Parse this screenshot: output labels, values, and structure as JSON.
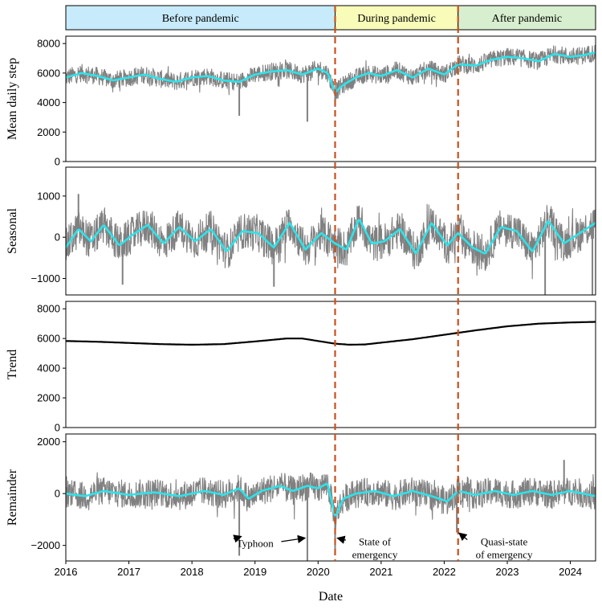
{
  "chart_data": {
    "type": "line",
    "xlabel": "Date",
    "xlim": [
      2016.0,
      2024.4
    ],
    "x_ticks": [
      2016,
      2017,
      2018,
      2019,
      2020,
      2021,
      2022,
      2023,
      2024
    ],
    "x_tick_labels": [
      "2016",
      "2017",
      "2018",
      "2019",
      "2020",
      "2021",
      "2022",
      "2023",
      "2024"
    ],
    "phases": [
      {
        "label": "Before pandemic",
        "start": 2016.0,
        "end": 2020.27,
        "color": "#c7ebfb"
      },
      {
        "label": "During pandemic",
        "start": 2020.27,
        "end": 2022.22,
        "color": "#f9fcb9"
      },
      {
        "label": "After pandemic",
        "start": 2022.22,
        "end": 2024.4,
        "color": "#d8efcf"
      }
    ],
    "event_lines": [
      2020.27,
      2022.22
    ],
    "colors": {
      "raw": "#808080",
      "smooth": "#2de3ea",
      "trend": "#000000",
      "event_line": "#c8501e",
      "phase_border": "#000000"
    },
    "panels": [
      {
        "ylabel": "Mean daily step",
        "ylim": [
          0,
          8500
        ],
        "y_ticks": [
          0,
          2000,
          4000,
          6000,
          8000
        ],
        "y_tick_labels": [
          "0",
          "2000",
          "4000",
          "6000",
          "8000"
        ],
        "smooth": {
          "x": [
            2016.0,
            2016.25,
            2016.5,
            2016.75,
            2017.0,
            2017.25,
            2017.5,
            2017.75,
            2018.0,
            2018.25,
            2018.5,
            2018.75,
            2019.0,
            2019.25,
            2019.5,
            2019.75,
            2020.0,
            2020.15,
            2020.27,
            2020.4,
            2020.6,
            2020.8,
            2021.0,
            2021.25,
            2021.5,
            2021.75,
            2022.0,
            2022.22,
            2022.5,
            2022.75,
            2023.0,
            2023.25,
            2023.5,
            2023.75,
            2024.0,
            2024.2,
            2024.4
          ],
          "y": [
            5700,
            6000,
            5800,
            5500,
            5700,
            5900,
            5600,
            5400,
            5700,
            5800,
            5500,
            5400,
            5900,
            6100,
            6200,
            5900,
            6300,
            6000,
            4700,
            5200,
            5700,
            6000,
            5800,
            6200,
            5700,
            6300,
            5900,
            6600,
            6500,
            6900,
            7100,
            7000,
            6800,
            7300,
            7100,
            7200,
            7400
          ]
        },
        "raw": {
          "amplitude": 600,
          "spikes": [
            [
              2018.75,
              3100
            ],
            [
              2019.83,
              2700
            ],
            [
              2020.27,
              3700
            ]
          ]
        }
      },
      {
        "ylabel": "Seasonal",
        "ylim": [
          -1400,
          1700
        ],
        "y_ticks": [
          -1000,
          0,
          1000
        ],
        "y_tick_labels": [
          "−1000",
          "0",
          "1000"
        ],
        "smooth": {
          "x": [
            2016.0,
            2016.2,
            2016.4,
            2016.6,
            2016.85,
            2017.05,
            2017.3,
            2017.55,
            2017.8,
            2018.05,
            2018.3,
            2018.55,
            2018.8,
            2019.05,
            2019.3,
            2019.55,
            2019.8,
            2020.05,
            2020.27,
            2020.45,
            2020.65,
            2020.85,
            2021.05,
            2021.3,
            2021.55,
            2021.8,
            2022.05,
            2022.22,
            2022.45,
            2022.65,
            2022.9,
            2023.15,
            2023.4,
            2023.65,
            2023.9,
            2024.15,
            2024.4
          ],
          "y": [
            -250,
            200,
            -100,
            300,
            -200,
            50,
            300,
            -150,
            250,
            -100,
            200,
            -350,
            150,
            100,
            -250,
            350,
            -300,
            100,
            -150,
            -300,
            450,
            -150,
            -100,
            200,
            -400,
            350,
            -200,
            100,
            -250,
            -400,
            250,
            150,
            -350,
            400,
            -150,
            100,
            350
          ]
        },
        "raw": {
          "amplitude": 450,
          "spikes": [
            [
              2016.2,
              1050
            ],
            [
              2016.9,
              -1150
            ],
            [
              2019.3,
              -1200
            ],
            [
              2023.6,
              -1400
            ],
            [
              2024.35,
              -1400
            ]
          ]
        }
      },
      {
        "ylabel": "Trend",
        "ylim": [
          0,
          8500
        ],
        "y_ticks": [
          0,
          2000,
          4000,
          6000,
          8000
        ],
        "y_tick_labels": [
          "0",
          "2000",
          "4000",
          "6000",
          "8000"
        ],
        "smooth": {
          "x": [
            2016.0,
            2016.5,
            2017.0,
            2017.5,
            2018.0,
            2018.5,
            2019.0,
            2019.5,
            2019.75,
            2020.0,
            2020.27,
            2020.5,
            2020.75,
            2021.0,
            2021.5,
            2022.0,
            2022.5,
            2023.0,
            2023.5,
            2024.0,
            2024.4
          ],
          "y": [
            5830,
            5780,
            5700,
            5620,
            5580,
            5620,
            5800,
            6000,
            6000,
            5830,
            5650,
            5580,
            5600,
            5720,
            5950,
            6250,
            6550,
            6820,
            7000,
            7080,
            7120
          ]
        },
        "raw": null
      },
      {
        "ylabel": "Remainder",
        "ylim": [
          -2600,
          2300
        ],
        "y_ticks": [
          -2000,
          0,
          2000
        ],
        "y_tick_labels": [
          "−2000",
          "0",
          "2000"
        ],
        "smooth": {
          "x": [
            2016.0,
            2016.3,
            2016.6,
            2017.0,
            2017.4,
            2017.8,
            2018.2,
            2018.5,
            2018.75,
            2018.9,
            2019.1,
            2019.4,
            2019.6,
            2019.83,
            2020.0,
            2020.15,
            2020.27,
            2020.4,
            2020.6,
            2020.9,
            2021.2,
            2021.5,
            2021.8,
            2022.05,
            2022.22,
            2022.5,
            2022.8,
            2023.1,
            2023.4,
            2023.7,
            2024.0,
            2024.4
          ],
          "y": [
            0,
            -100,
            100,
            -50,
            50,
            -100,
            100,
            -50,
            200,
            -200,
            100,
            300,
            100,
            300,
            200,
            400,
            -900,
            -200,
            0,
            100,
            -100,
            100,
            -100,
            -300,
            100,
            -50,
            100,
            -50,
            100,
            -50,
            100,
            -100
          ]
        },
        "raw": {
          "amplitude": 550,
          "spikes": [
            [
              2018.75,
              -2400
            ],
            [
              2019.83,
              -2600
            ],
            [
              2020.27,
              -2200
            ],
            [
              2022.2,
              -1500
            ],
            [
              2023.9,
              1300
            ]
          ]
        }
      }
    ],
    "annotations": [
      {
        "lines": [
          "Typhoon"
        ],
        "tx": 2019.0,
        "ty": -2050,
        "panel": 3,
        "targets": [
          [
            2018.75,
            -1600
          ],
          [
            2019.83,
            -1700
          ]
        ]
      },
      {
        "lines": [
          "State of",
          "emergency"
        ],
        "tx": 2020.9,
        "ty": -2000,
        "panel": 3,
        "targets": [
          [
            2020.27,
            -1700
          ]
        ]
      },
      {
        "lines": [
          "Quasi-state",
          "of emergency"
        ],
        "tx": 2022.95,
        "ty": -2000,
        "panel": 3,
        "targets": [
          [
            2022.2,
            -1500
          ]
        ]
      }
    ]
  }
}
